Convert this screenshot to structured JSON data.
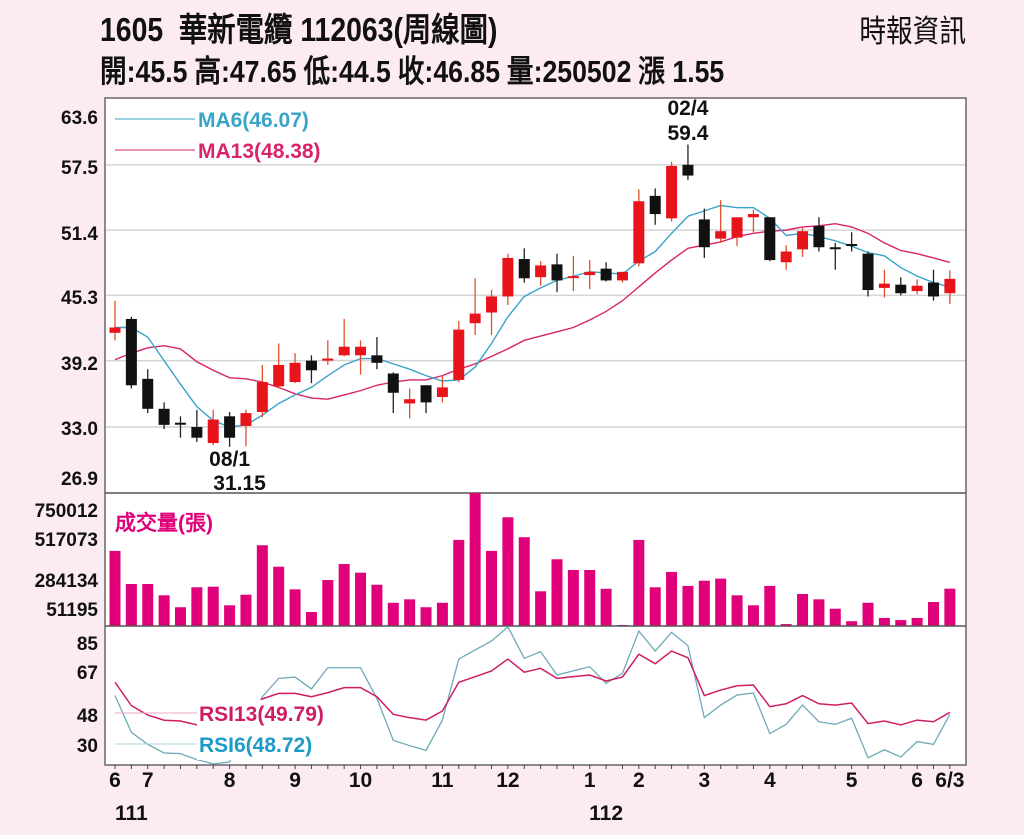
{
  "header": {
    "code": "1605",
    "name": "華新電纜",
    "date_label": "112063(周線圖)",
    "source": "時報資訊",
    "open": "開:45.5",
    "high": "高:47.65",
    "low": "低:44.5",
    "close": "收:46.85",
    "volume": "量:250502",
    "change": "漲 1.55"
  },
  "colors": {
    "up": "#e8141c",
    "down": "#111111",
    "ma6": "#3aa3c9",
    "ma13": "#d8246c",
    "volume": "#e0007a",
    "rsi6": "#6eaab9",
    "rsi13": "#d01c64",
    "grid": "#d4d4d4",
    "background": "#fcebf3"
  },
  "chart_data": [
    {
      "type": "candlestick",
      "title": "1605 華新電纜 周線圖",
      "y_ticks": [
        "63.6",
        "57.5",
        "51.4",
        "45.3",
        "39.2",
        "33.0",
        "26.9"
      ],
      "ylim": [
        26.9,
        63.6
      ],
      "grid": true,
      "legend": [
        {
          "name": "MA6(46.07)",
          "series": "ma6"
        },
        {
          "name": "MA13(48.38)",
          "series": "ma13"
        }
      ],
      "annotations": [
        {
          "date": "02/4",
          "value": "59.4",
          "index": 35
        },
        {
          "date": "08/1",
          "value": "31.15",
          "index": 7
        }
      ],
      "ohlc": [
        [
          41.8,
          44.8,
          41.1,
          42.3
        ],
        [
          43.1,
          43.3,
          36.6,
          36.9
        ],
        [
          37.5,
          38.4,
          34.3,
          34.7
        ],
        [
          34.7,
          35.3,
          32.8,
          33.2
        ],
        [
          33.4,
          34.0,
          32.0,
          33.3
        ],
        [
          33.0,
          34.6,
          31.6,
          32.0
        ],
        [
          31.5,
          34.6,
          31.3,
          33.7
        ],
        [
          34.0,
          34.4,
          31.15,
          32.0
        ],
        [
          33.1,
          34.6,
          31.2,
          34.3
        ],
        [
          34.4,
          38.8,
          33.9,
          37.2
        ],
        [
          36.8,
          40.8,
          36.6,
          38.8
        ],
        [
          37.2,
          39.9,
          37.1,
          39.0
        ],
        [
          39.2,
          39.7,
          37.1,
          38.3
        ],
        [
          39.2,
          41.1,
          38.8,
          39.4
        ],
        [
          39.7,
          43.1,
          39.6,
          40.5
        ],
        [
          39.7,
          41.1,
          37.9,
          40.5
        ],
        [
          39.7,
          41.4,
          38.4,
          39.0
        ],
        [
          38.0,
          38.1,
          34.3,
          36.2
        ],
        [
          35.2,
          36.6,
          33.8,
          35.6
        ],
        [
          36.9,
          36.9,
          34.3,
          35.3
        ],
        [
          35.8,
          37.8,
          35.3,
          36.7
        ],
        [
          37.4,
          42.9,
          37.2,
          42.1
        ],
        [
          42.7,
          46.9,
          41.6,
          43.6
        ],
        [
          43.7,
          45.8,
          41.6,
          45.2
        ],
        [
          45.2,
          49.2,
          44.4,
          48.8
        ],
        [
          48.7,
          49.7,
          46.5,
          46.9
        ],
        [
          47.0,
          48.5,
          46.2,
          48.1
        ],
        [
          48.2,
          49.2,
          45.6,
          46.7
        ],
        [
          47.0,
          49.0,
          45.7,
          47.1
        ],
        [
          47.2,
          48.6,
          45.9,
          47.5
        ],
        [
          47.8,
          48.4,
          46.6,
          46.7
        ],
        [
          46.7,
          47.5,
          46.5,
          47.5
        ],
        [
          48.3,
          55.2,
          48.0,
          54.1
        ],
        [
          54.6,
          55.3,
          51.9,
          52.9
        ],
        [
          52.5,
          57.8,
          52.2,
          57.4
        ],
        [
          57.5,
          59.4,
          56.1,
          56.5
        ],
        [
          52.4,
          53.4,
          48.8,
          49.8
        ],
        [
          50.6,
          54.2,
          50.2,
          51.3
        ],
        [
          50.7,
          52.6,
          49.9,
          52.6
        ],
        [
          52.6,
          53.3,
          51.2,
          52.9
        ],
        [
          52.6,
          52.6,
          48.5,
          48.6
        ],
        [
          48.4,
          50.0,
          47.7,
          49.4
        ],
        [
          49.6,
          51.6,
          48.9,
          51.3
        ],
        [
          51.8,
          52.6,
          49.4,
          49.8
        ],
        [
          49.8,
          50.2,
          47.7,
          49.7
        ],
        [
          50.1,
          51.2,
          49.4,
          50.0
        ],
        [
          49.2,
          49.4,
          45.2,
          45.8
        ],
        [
          46.0,
          47.7,
          45.1,
          46.4
        ],
        [
          46.3,
          47.0,
          45.3,
          45.5
        ],
        [
          45.7,
          46.8,
          45.4,
          46.2
        ],
        [
          46.5,
          47.7,
          44.8,
          45.2
        ],
        [
          45.5,
          47.65,
          44.5,
          46.85
        ]
      ],
      "ma6": [
        42.3,
        42.3,
        41.4,
        39.2,
        37.0,
        34.9,
        33.6,
        33.0,
        33.2,
        34.1,
        35.2,
        36.0,
        36.7,
        37.8,
        38.8,
        39.4,
        39.4,
        38.9,
        38.4,
        37.8,
        37.3,
        37.4,
        38.6,
        40.8,
        43.3,
        45.2,
        46.0,
        46.7,
        47.1,
        47.5,
        47.4,
        47.3,
        48.5,
        49.4,
        51.1,
        52.7,
        53.2,
        53.7,
        53.5,
        53.5,
        52.5,
        50.9,
        51.1,
        50.8,
        50.4,
        49.9,
        49.3,
        49.0,
        47.9,
        47.1,
        46.5,
        46.07
      ],
      "ma13": [
        39.3,
        39.9,
        40.4,
        40.6,
        40.3,
        39.1,
        38.3,
        37.6,
        37.5,
        37.2,
        36.7,
        36.1,
        35.7,
        35.6,
        36.0,
        36.4,
        36.9,
        37.2,
        37.4,
        37.4,
        37.8,
        38.4,
        38.9,
        39.6,
        40.3,
        41.1,
        41.5,
        41.9,
        42.3,
        43.0,
        43.8,
        44.8,
        46.1,
        47.4,
        48.6,
        49.7,
        50.0,
        50.3,
        50.8,
        51.1,
        51.3,
        51.4,
        51.7,
        51.8,
        52.0,
        51.7,
        51.1,
        50.2,
        49.5,
        49.2,
        48.8,
        48.38
      ]
    },
    {
      "type": "bar",
      "title": "成交量(張)",
      "y_ticks": [
        "750012",
        "517073",
        "284134",
        "51195"
      ],
      "ylim": [
        0,
        893000
      ],
      "values": [
        504000,
        282000,
        282000,
        206000,
        126000,
        260000,
        264000,
        139000,
        210000,
        542000,
        398000,
        246000,
        94000,
        309000,
        416000,
        358000,
        277000,
        156000,
        179000,
        126000,
        156000,
        578000,
        893000,
        504000,
        730000,
        596000,
        233000,
        448000,
        376000,
        376000,
        250000,
        7000,
        578000,
        260000,
        363000,
        269000,
        304000,
        318000,
        206000,
        139000,
        269000,
        13000,
        215000,
        179000,
        116000,
        32000,
        156000,
        54000,
        40000,
        54000,
        161000,
        250502
      ]
    },
    {
      "type": "line",
      "y_ticks": [
        "85",
        "67",
        "48",
        "30"
      ],
      "ylim": [
        21,
        97
      ],
      "legend": [
        {
          "name": "RSI13(49.79)",
          "series": "rsi13"
        },
        {
          "name": "RSI6(48.72)",
          "series": "rsi6"
        }
      ],
      "rsi13": [
        66.0,
        53.4,
        48.3,
        45.5,
        45.1,
        43.0,
        42,
        41,
        45,
        57,
        60.0,
        60.0,
        58.2,
        60.4,
        63.1,
        63.1,
        58.2,
        48.7,
        46.9,
        45.6,
        50.5,
        66.0,
        69.0,
        72.1,
        78.5,
        71.4,
        73.5,
        68.1,
        69.0,
        69.9,
        66.7,
        68.8,
        81.1,
        76.0,
        82.8,
        79.2,
        58.8,
        61.8,
        64.1,
        64.5,
        52.8,
        54.4,
        58.8,
        54.4,
        53.7,
        54.8,
        43.7,
        45.1,
        43.0,
        45.6,
        44.7,
        49.79
      ],
      "rsi6": [
        58.8,
        39.0,
        32.5,
        27.9,
        27.5,
        24.3,
        22,
        23,
        40,
        58.2,
        68.1,
        68.8,
        62.4,
        73.8,
        73.8,
        73.8,
        57.3,
        34.7,
        31.8,
        29.3,
        45.6,
        78.5,
        83.4,
        88.2,
        95.9,
        78.9,
        82.5,
        69.9,
        72.1,
        74.4,
        65.4,
        70.8,
        93.6,
        82.8,
        92.9,
        85.7,
        46.9,
        53.7,
        59.1,
        60.2,
        38.3,
        43.3,
        53.7,
        44.7,
        43.3,
        46.6,
        25.3,
        29.6,
        25.7,
        34.0,
        32.5,
        48.72
      ]
    }
  ],
  "x_axis": {
    "labels": [
      {
        "text": "6",
        "index": 0
      },
      {
        "text": "7",
        "index": 2
      },
      {
        "text": "8",
        "index": 7
      },
      {
        "text": "9",
        "index": 11
      },
      {
        "text": "10",
        "index": 15
      },
      {
        "text": "11",
        "index": 20
      },
      {
        "text": "12",
        "index": 24
      },
      {
        "text": "1",
        "index": 29
      },
      {
        "text": "2",
        "index": 32
      },
      {
        "text": "3",
        "index": 36
      },
      {
        "text": "4",
        "index": 40
      },
      {
        "text": "5",
        "index": 45
      },
      {
        "text": "6",
        "index": 49
      },
      {
        "text": "6/3",
        "index": 51
      }
    ],
    "years": [
      {
        "text": "111",
        "index": 1
      },
      {
        "text": "112",
        "index": 30
      }
    ]
  }
}
